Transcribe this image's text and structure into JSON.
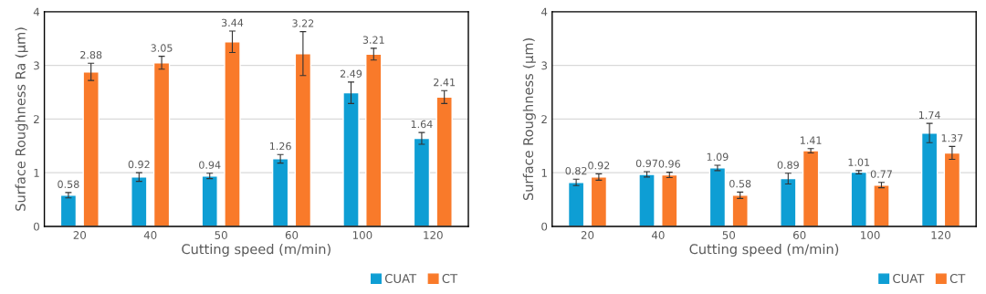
{
  "chart_data": [
    {
      "type": "bar",
      "xlabel": "Cutting speed (m/min)",
      "ylabel": "Surface Roughness Ra (µm)",
      "categories": [
        "20",
        "40",
        "50",
        "60",
        "100",
        "120"
      ],
      "series": [
        {
          "name": "CUAT",
          "color": "#0e9ed4",
          "values": [
            0.58,
            0.92,
            0.94,
            1.26,
            2.49,
            1.64
          ],
          "errors": [
            0.05,
            0.08,
            0.05,
            0.08,
            0.2,
            0.11
          ]
        },
        {
          "name": "CT",
          "color": "#f97a2a",
          "values": [
            2.88,
            3.05,
            3.44,
            3.22,
            3.21,
            2.41
          ],
          "errors": [
            0.16,
            0.12,
            0.2,
            0.41,
            0.11,
            0.12
          ]
        }
      ],
      "ylim": [
        0,
        4
      ],
      "yticks": [
        0,
        1,
        2,
        3,
        4
      ],
      "grid": "y",
      "legend": "bottom right",
      "data_labels": true
    },
    {
      "type": "bar",
      "xlabel": "Cutting speed (m/min)",
      "ylabel": "Surface Roughness (µm)",
      "categories": [
        "20",
        "40",
        "50",
        "60",
        "100",
        "120"
      ],
      "series": [
        {
          "name": "CUAT",
          "color": "#0e9ed4",
          "values": [
            0.82,
            0.97,
            1.09,
            0.89,
            1.01,
            1.74
          ],
          "errors": [
            0.06,
            0.05,
            0.05,
            0.1,
            0.03,
            0.18
          ]
        },
        {
          "name": "CT",
          "color": "#f97a2a",
          "values": [
            0.92,
            0.96,
            0.58,
            1.41,
            0.77,
            1.37
          ],
          "errors": [
            0.06,
            0.05,
            0.06,
            0.04,
            0.05,
            0.12
          ]
        }
      ],
      "ylim": [
        0,
        4
      ],
      "yticks": [
        0,
        1,
        2,
        3,
        4
      ],
      "grid": "y",
      "legend": "bottom right",
      "data_labels": true
    }
  ]
}
